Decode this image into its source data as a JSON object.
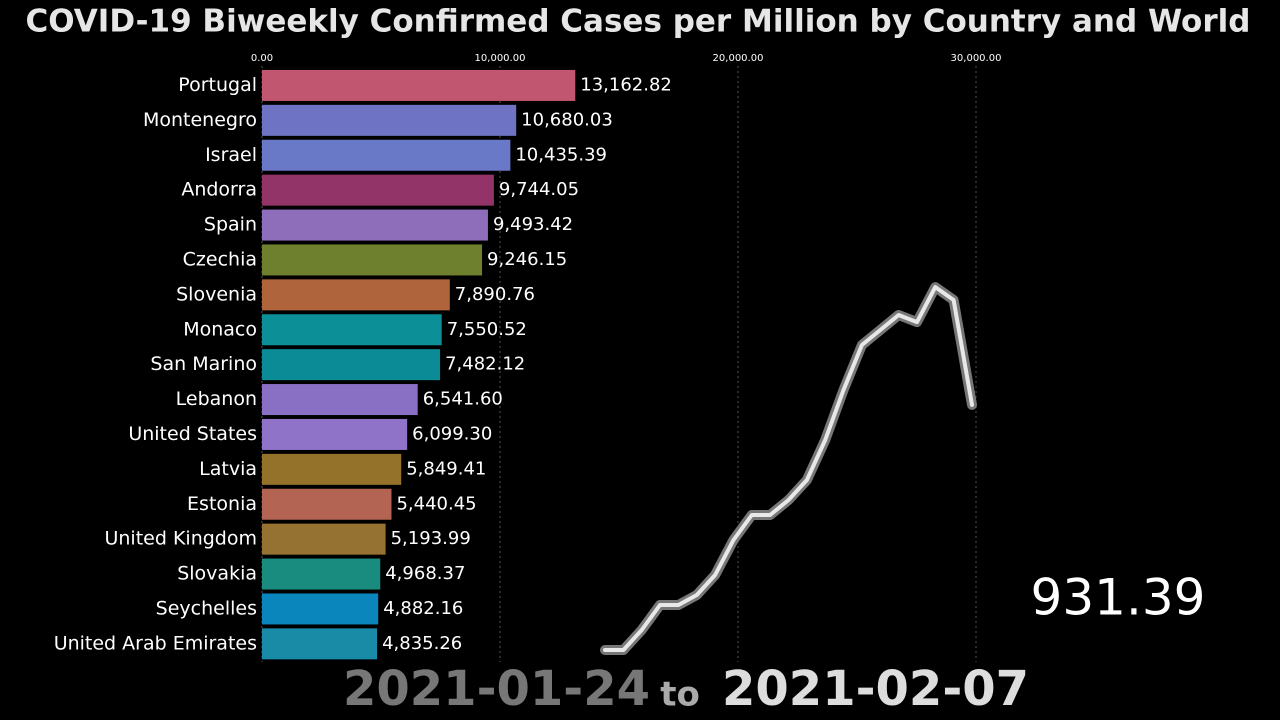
{
  "chart_data": {
    "type": "bar",
    "orientation": "horizontal",
    "title": "COVID-19 Biweekly Confirmed Cases per Million by Country and World",
    "categories": [
      "Portugal",
      "Montenegro",
      "Israel",
      "Andorra",
      "Spain",
      "Czechia",
      "Slovenia",
      "Monaco",
      "San Marino",
      "Lebanon",
      "United States",
      "Latvia",
      "Estonia",
      "United Kingdom",
      "Slovakia",
      "Seychelles",
      "United Arab Emirates"
    ],
    "values": [
      13162.82,
      10680.03,
      10435.39,
      9744.05,
      9493.42,
      9246.15,
      7890.76,
      7550.52,
      7482.12,
      6541.6,
      6099.3,
      5849.41,
      5440.45,
      5193.99,
      4968.37,
      4882.16,
      4835.26
    ],
    "value_labels": [
      "13,162.82",
      "10,680.03",
      "10,435.39",
      "9,744.05",
      "9,493.42",
      "9,246.15",
      "7,890.76",
      "7,550.52",
      "7,482.12",
      "6,541.60",
      "6,099.30",
      "5,849.41",
      "5,440.45",
      "5,193.99",
      "4,968.37",
      "4,882.16",
      "4,835.26"
    ],
    "colors": [
      "#c0566f",
      "#6f73c4",
      "#6a78c8",
      "#923468",
      "#8e6dba",
      "#6e7f2e",
      "#b0643c",
      "#0c8f96",
      "#0a8b95",
      "#8970c4",
      "#8f73c8",
      "#94722a",
      "#b36452",
      "#957232",
      "#1a8c7f",
      "#0a86bd",
      "#1a8ba6"
    ],
    "xlim": [
      0,
      30000
    ],
    "xticks": [
      {
        "value": 0,
        "label": "0.00"
      },
      {
        "value": 10000,
        "label": "10,000.00"
      },
      {
        "value": 20000,
        "label": "20,000.00"
      },
      {
        "value": 30000,
        "label": "30,000.00"
      }
    ],
    "grid": true,
    "world": {
      "values": [
        0,
        0,
        76,
        171,
        171,
        209,
        285,
        418,
        513,
        513,
        570,
        646,
        798,
        988,
        1159,
        1216,
        1273,
        1246,
        1379,
        1330,
        931.39
      ],
      "value": 931.39
    },
    "date_start": "2021-01-24",
    "date_sep": "to",
    "date_end": "2021-02-07"
  }
}
